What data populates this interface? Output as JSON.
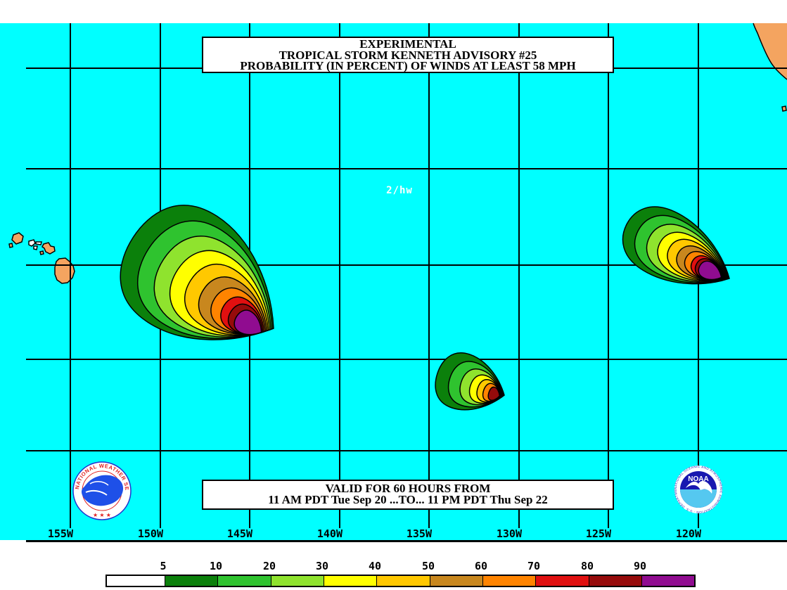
{
  "header": {
    "line1": "EXPERIMENTAL",
    "line2": "TROPICAL STORM KENNETH ADVISORY #25",
    "line3": "PROBABILITY (IN PERCENT) OF WINDS AT LEAST 58 MPH"
  },
  "validity": {
    "line1": "VALID FOR 60 HOURS FROM",
    "line2": "11 AM PDT Tue Sep 20 ...TO... 11 PM PDT Thu Sep 22"
  },
  "map": {
    "annotation": "2/hw",
    "ocean_color": "#00FFFF",
    "land_color": "#F4A460",
    "grid_color": "#000000",
    "longitude_labels": [
      "155W",
      "150W",
      "145W",
      "140W",
      "135W",
      "130W",
      "125W",
      "120W"
    ],
    "regions": [
      "Hawaiian Islands",
      "California / Baja coast"
    ],
    "probability_maxima": [
      {
        "area": "large lobe southeast of Hawaii near 145W",
        "max_band": "90-100"
      },
      {
        "area": "small lobe near 131W",
        "max_band": "70-80"
      },
      {
        "area": "lobe near 121W off Baja",
        "max_band": "90-100"
      }
    ]
  },
  "colorbar": {
    "tick_labels": [
      "5",
      "10",
      "20",
      "30",
      "40",
      "50",
      "60",
      "70",
      "80",
      "90"
    ],
    "segments": [
      {
        "range": "0-5",
        "color": "#FFFFFF"
      },
      {
        "range": "5-10",
        "color": "#0B800B"
      },
      {
        "range": "10-20",
        "color": "#2FC32F"
      },
      {
        "range": "20-30",
        "color": "#8FE32E"
      },
      {
        "range": "30-40",
        "color": "#FFFF00"
      },
      {
        "range": "40-50",
        "color": "#FFC800"
      },
      {
        "range": "50-60",
        "color": "#C8871E"
      },
      {
        "range": "60-70",
        "color": "#FF8400"
      },
      {
        "range": "70-80",
        "color": "#E01010"
      },
      {
        "range": "80-90",
        "color": "#960B0B"
      },
      {
        "range": "90-100",
        "color": "#900C90"
      }
    ]
  },
  "logos": {
    "nws": {
      "ring_text": "NATIONAL WEATHER SERVICE",
      "stars": "★ ★ ★"
    },
    "noaa": {
      "name": "NOAA",
      "ring_text": "NATIONAL OCEANIC AND ATMOSPHERIC ADMINISTRATION · U.S. DEPARTMENT OF COMMERCE"
    }
  }
}
